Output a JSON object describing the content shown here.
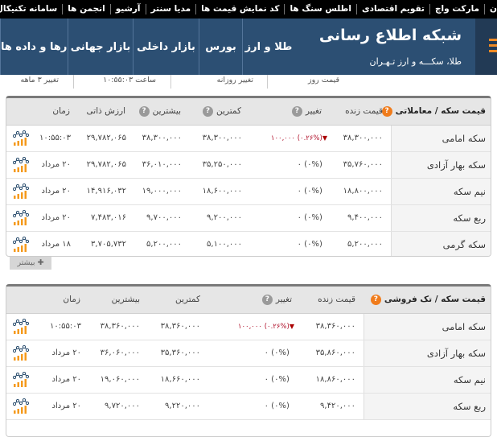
{
  "topnav": {
    "items": [
      "ن",
      "مارکت واچ",
      "تقویم اقتصادی",
      "اطلس سنگ ها",
      "کد نمایش قیمت ها",
      "مدیا سنتر",
      "آرشیو",
      "انجمن ها",
      "سامانه تکنیکال"
    ]
  },
  "header": {
    "title": "شبکه اطلاع رسانی",
    "subtitle": "طلا، سکـــه و ارز تـهـران",
    "menu_icon": "hamburger-icon",
    "nav": [
      "طلا و ارز",
      "بورس",
      "بازار داخلی",
      "بازار جهانی",
      "نمودارها و داده ها"
    ]
  },
  "subbar": {
    "cols": [
      "قیمت روز",
      "تغییر روزانه",
      "ساعت ۱۰:۵۵:۰۳",
      "تغییر ۳ ماهه"
    ]
  },
  "colors": {
    "header_bg": "#2c4f73",
    "accent": "#f07c1c",
    "negative": "#b0102a"
  },
  "table1": {
    "title": "قیمت سکه / معاملاتی",
    "headers": {
      "live": "قیمت زنده",
      "change": "تغییر",
      "min": "کمترین",
      "max": "بیشترین",
      "intrinsic": "ارزش ذاتی",
      "time": "زمان"
    },
    "rows": [
      {
        "name": "سکه امامی",
        "live": "۳۸,۳۰۰,۰۰۰",
        "chg": "۱۰۰,۰۰۰",
        "pct": "۰.۲۶%",
        "dir": "down",
        "min": "۳۸,۳۰۰,۰۰۰",
        "max": "۳۸,۳۰۰,۰۰۰",
        "intrinsic": "۲۹,۷۸۲,۰۶۵",
        "time": "۱۰:۵۵:۰۳"
      },
      {
        "name": "سکه بهار آزادی",
        "live": "۳۵,۷۶۰,۰۰۰",
        "chg": "۰",
        "pct": "۰%",
        "dir": "none",
        "min": "۳۵,۲۵۰,۰۰۰",
        "max": "۳۶,۰۱۰,۰۰۰",
        "intrinsic": "۲۹,۷۸۲,۰۶۵",
        "time": "۲۰ مرداد"
      },
      {
        "name": "نیم سکه",
        "live": "۱۸,۸۰۰,۰۰۰",
        "chg": "۰",
        "pct": "۰%",
        "dir": "none",
        "min": "۱۸,۶۰۰,۰۰۰",
        "max": "۱۹,۰۰۰,۰۰۰",
        "intrinsic": "۱۴,۹۱۶,۰۳۲",
        "time": "۲۰ مرداد"
      },
      {
        "name": "ربع سکه",
        "live": "۹,۴۰۰,۰۰۰",
        "chg": "۰",
        "pct": "۰%",
        "dir": "none",
        "min": "۹,۲۰۰,۰۰۰",
        "max": "۹,۷۰۰,۰۰۰",
        "intrinsic": "۷,۴۸۳,۰۱۶",
        "time": "۲۰ مرداد"
      },
      {
        "name": "سکه گرمی",
        "live": "۵,۲۰۰,۰۰۰",
        "chg": "۰",
        "pct": "۰%",
        "dir": "none",
        "min": "۵,۱۰۰,۰۰۰",
        "max": "۵,۲۰۰,۰۰۰",
        "intrinsic": "۳,۷۰۵,۷۳۲",
        "time": "۱۸ مرداد"
      }
    ],
    "more_label": "✚ بیشتر"
  },
  "table2": {
    "title": "قیمت سکه / تک فروشی",
    "headers": {
      "live": "قیمت زنده",
      "change": "تغییر",
      "min": "کمترین",
      "max": "بیشترین",
      "time": "زمان"
    },
    "rows": [
      {
        "name": "سکه امامی",
        "live": "۳۸,۳۶۰,۰۰۰",
        "chg": "۱۰۰,۰۰۰",
        "pct": "۰.۲۶%",
        "dir": "down",
        "min": "۳۸,۳۶۰,۰۰۰",
        "max": "۳۸,۳۶۰,۰۰۰",
        "time": "۱۰:۵۵:۰۳"
      },
      {
        "name": "سکه بهار آزادی",
        "live": "۳۵,۸۶۰,۰۰۰",
        "chg": "۰",
        "pct": "۰%",
        "dir": "none",
        "min": "۳۵,۳۶۰,۰۰۰",
        "max": "۳۶,۰۶۰,۰۰۰",
        "time": "۲۰ مرداد"
      },
      {
        "name": "نیم سکه",
        "live": "۱۸,۸۶۰,۰۰۰",
        "chg": "۰",
        "pct": "۰%",
        "dir": "none",
        "min": "۱۸,۶۶۰,۰۰۰",
        "max": "۱۹,۰۶۰,۰۰۰",
        "time": "۲۰ مرداد"
      },
      {
        "name": "ربع سکه",
        "live": "۹,۴۲۰,۰۰۰",
        "chg": "۰",
        "pct": "۰%",
        "dir": "none",
        "min": "۹,۲۲۰,۰۰۰",
        "max": "۹,۷۲۰,۰۰۰",
        "time": "۲۰ مرداد"
      }
    ]
  }
}
